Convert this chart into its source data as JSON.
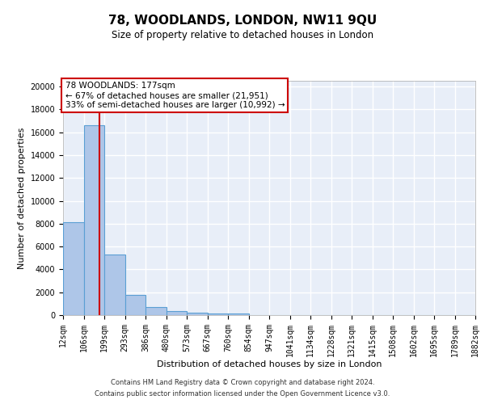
{
  "title": "78, WOODLANDS, LONDON, NW11 9QU",
  "subtitle": "Size of property relative to detached houses in London",
  "xlabel": "Distribution of detached houses by size in London",
  "ylabel": "Number of detached properties",
  "footer_line1": "Contains HM Land Registry data © Crown copyright and database right 2024.",
  "footer_line2": "Contains public sector information licensed under the Open Government Licence v3.0.",
  "bar_color": "#aec6e8",
  "bar_edge_color": "#5a9fd4",
  "annotation_box_color": "#cc0000",
  "vline_color": "#cc0000",
  "property_size": 177,
  "annotation_title": "78 WOODLANDS: 177sqm",
  "annotation_line2": "← 67% of detached houses are smaller (21,951)",
  "annotation_line3": "33% of semi-detached houses are larger (10,992) →",
  "bin_edges": [
    12,
    106,
    199,
    293,
    386,
    480,
    573,
    667,
    760,
    854,
    947,
    1041,
    1134,
    1228,
    1321,
    1415,
    1508,
    1602,
    1695,
    1789,
    1882
  ],
  "bin_labels": [
    "12sqm",
    "106sqm",
    "199sqm",
    "293sqm",
    "386sqm",
    "480sqm",
    "573sqm",
    "667sqm",
    "760sqm",
    "854sqm",
    "947sqm",
    "1041sqm",
    "1134sqm",
    "1228sqm",
    "1321sqm",
    "1415sqm",
    "1508sqm",
    "1602sqm",
    "1695sqm",
    "1789sqm",
    "1882sqm"
  ],
  "bar_heights": [
    8100,
    16600,
    5300,
    1750,
    700,
    320,
    220,
    170,
    150,
    0,
    0,
    0,
    0,
    0,
    0,
    0,
    0,
    0,
    0,
    0
  ],
  "ylim": [
    0,
    20500
  ],
  "yticks": [
    0,
    2000,
    4000,
    6000,
    8000,
    10000,
    12000,
    14000,
    16000,
    18000,
    20000
  ],
  "background_color": "#e8eef8",
  "grid_color": "#ffffff",
  "title_fontsize": 11,
  "subtitle_fontsize": 8.5,
  "axis_label_fontsize": 8,
  "tick_fontsize": 7,
  "annotation_fontsize": 7.5,
  "footer_fontsize": 6
}
